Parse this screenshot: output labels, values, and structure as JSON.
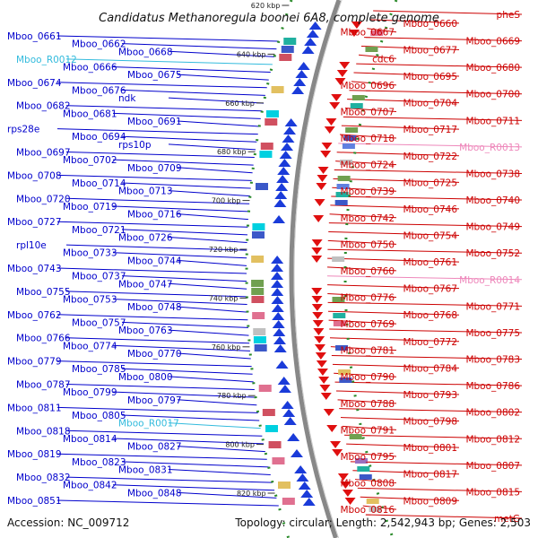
{
  "title": "Candidatus Methanoregula boonei 6A8, complete genome",
  "accession": "Accession: NC_009712",
  "topology": "Topology: circular; Length: 2,542,943 bp; Genes: 2,503",
  "colors": {
    "left_label": "#0000cc",
    "right_label": "#cc0000",
    "rna_left": "#33bbdd",
    "rna_right": "#ee88bb",
    "forward_arrow": "#1a3bd9",
    "reverse_arrow": "#e01010",
    "backbone": "#888888",
    "dots": "#2a8a2a"
  },
  "scale_ticks": [
    "620 kbp",
    "640 kbp",
    "660 kbp",
    "680 kbp",
    "700 kbp",
    "720 kbp",
    "740 kbp",
    "760 kbp",
    "780 kbp",
    "800 kbp",
    "820 kbp"
  ],
  "left_labels": [
    "Mboo_0661",
    "Mboo_0662",
    "Mboo_0668",
    "Mboo_R0012",
    "Mboo_0666",
    "Mboo_0675",
    "Mboo_0674",
    "Mboo_0676",
    "ndk",
    "Mboo_0682",
    "Mboo_0681",
    "Mboo_0691",
    "rps28e",
    "Mboo_0694",
    "rps10p",
    "Mboo_0697",
    "Mboo_0702",
    "Mboo_0709",
    "Mboo_0708",
    "Mboo_0714",
    "Mboo_0713",
    "Mboo_0720",
    "Mboo_0719",
    "Mboo_0716",
    "Mboo_0727",
    "Mboo_0721",
    "Mboo_0726",
    "rpl10e",
    "Mboo_0733",
    "Mboo_0744",
    "Mboo_0743",
    "Mboo_0737",
    "Mboo_0747",
    "Mboo_0755",
    "Mboo_0753",
    "Mboo_0748",
    "Mboo_0762",
    "Mboo_0757",
    "Mboo_0763",
    "Mboo_0766",
    "Mboo_0774",
    "Mboo_0770",
    "Mboo_0779",
    "Mboo_0785",
    "Mboo_0800",
    "Mboo_0787",
    "Mboo_0799",
    "Mboo_0797",
    "Mboo_0811",
    "Mboo_0805",
    "Mboo_R0017",
    "Mboo_0818",
    "Mboo_0814",
    "Mboo_0827",
    "Mboo_0819",
    "Mboo_0823",
    "Mboo_0831",
    "Mboo_0832",
    "Mboo_0842",
    "Mboo_0848",
    "Mboo_0851"
  ],
  "right_labels": [
    "pheS",
    "Mboo_0660",
    "Mboo_0667",
    "Mboo_0669",
    "Mboo_0677",
    "cdc6",
    "Mboo_0680",
    "Mboo_0695",
    "Mboo_0696",
    "Mboo_0700",
    "Mboo_0704",
    "Mboo_0707",
    "Mboo_0711",
    "Mboo_0717",
    "Mboo_0718",
    "Mboo_R0013",
    "Mboo_0722",
    "Mboo_0724",
    "Mboo_0738",
    "Mboo_0725",
    "Mboo_0739",
    "Mboo_0740",
    "Mboo_0746",
    "Mboo_0742",
    "Mboo_0749",
    "Mboo_0754",
    "Mboo_0750",
    "Mboo_0752",
    "Mboo_0761",
    "Mboo_0760",
    "Mboo_R0014",
    "Mboo_0767",
    "Mboo_0776",
    "Mboo_0771",
    "Mboo_0768",
    "Mboo_0769",
    "Mboo_0775",
    "Mboo_0772",
    "Mboo_0781",
    "Mboo_0783",
    "Mboo_0784",
    "Mboo_0790",
    "Mboo_0786",
    "Mboo_0793",
    "Mboo_0788",
    "Mboo_0802",
    "Mboo_0798",
    "Mboo_0791",
    "Mboo_0812",
    "Mboo_0801",
    "Mboo_0795",
    "Mboo_0807",
    "Mboo_0817",
    "Mboo_0808",
    "Mboo_0815",
    "Mboo_0809",
    "Mboo_0816",
    "metG"
  ]
}
